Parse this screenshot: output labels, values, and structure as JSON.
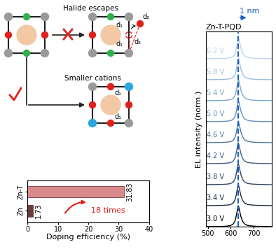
{
  "diagram": {
    "halide_label": "Halide escapes",
    "cation_label": "Smaller cations",
    "d1": "d₁",
    "d2": "d₂"
  },
  "chart_data": [
    {
      "type": "bar",
      "orientation": "horizontal",
      "categories": [
        "Zn-T",
        "Zn"
      ],
      "values": [
        31.83,
        1.73
      ],
      "colors": [
        "#d98a8c",
        "#6e3b3b"
      ],
      "xlabel": "Doping efficiency (%)",
      "xlim": [
        0,
        40
      ],
      "xticks": [
        0,
        10,
        20,
        30,
        40
      ],
      "data_labels": true,
      "annotation": "18 times"
    },
    {
      "type": "line",
      "title": "Zn-T-PQD",
      "ylabel": "EL intensity (norm.)",
      "x": [
        490,
        560,
        580,
        595,
        605,
        612,
        618,
        623,
        627,
        630,
        632,
        634,
        637,
        641,
        646,
        652,
        660,
        672,
        690,
        720,
        780
      ],
      "series": [
        {
          "name": "3.0 V",
          "color": "#000000",
          "values": [
            0.0,
            0.01,
            0.02,
            0.04,
            0.08,
            0.14,
            0.25,
            0.45,
            0.68,
            0.88,
            1.0,
            0.97,
            0.85,
            0.64,
            0.42,
            0.25,
            0.13,
            0.06,
            0.03,
            0.01,
            0.0
          ]
        },
        {
          "name": "3.4 V",
          "color": "#1c2b3a",
          "values": [
            0.0,
            0.01,
            0.02,
            0.04,
            0.08,
            0.14,
            0.25,
            0.45,
            0.68,
            0.88,
            1.0,
            0.97,
            0.85,
            0.64,
            0.42,
            0.25,
            0.13,
            0.06,
            0.03,
            0.01,
            0.0
          ]
        },
        {
          "name": "3.8 V",
          "color": "#2d4660",
          "values": [
            0.0,
            0.01,
            0.02,
            0.04,
            0.08,
            0.14,
            0.25,
            0.45,
            0.68,
            0.88,
            1.0,
            0.97,
            0.85,
            0.64,
            0.42,
            0.25,
            0.13,
            0.06,
            0.03,
            0.01,
            0.0
          ]
        },
        {
          "name": "4.2 V",
          "color": "#3d5f82",
          "values": [
            0.0,
            0.01,
            0.02,
            0.04,
            0.08,
            0.14,
            0.25,
            0.45,
            0.68,
            0.88,
            1.0,
            0.97,
            0.85,
            0.64,
            0.42,
            0.25,
            0.13,
            0.06,
            0.03,
            0.01,
            0.0
          ]
        },
        {
          "name": "4.6 V",
          "color": "#4d78a3",
          "values": [
            0.0,
            0.01,
            0.02,
            0.04,
            0.07,
            0.13,
            0.23,
            0.42,
            0.64,
            0.84,
            0.97,
            1.0,
            0.88,
            0.67,
            0.45,
            0.27,
            0.14,
            0.07,
            0.03,
            0.01,
            0.0
          ]
        },
        {
          "name": "5.0 V",
          "color": "#5f8fbf",
          "values": [
            0.0,
            0.01,
            0.02,
            0.04,
            0.07,
            0.13,
            0.23,
            0.42,
            0.64,
            0.84,
            0.97,
            1.0,
            0.88,
            0.67,
            0.45,
            0.27,
            0.14,
            0.07,
            0.03,
            0.01,
            0.0
          ]
        },
        {
          "name": "5.4 V",
          "color": "#7ba6d0",
          "values": [
            0.0,
            0.01,
            0.02,
            0.04,
            0.07,
            0.13,
            0.23,
            0.42,
            0.64,
            0.84,
            0.97,
            1.0,
            0.88,
            0.67,
            0.45,
            0.27,
            0.14,
            0.07,
            0.03,
            0.01,
            0.0
          ]
        },
        {
          "name": "5.8 V",
          "color": "#9bbcdf",
          "values": [
            0.0,
            0.01,
            0.02,
            0.04,
            0.07,
            0.13,
            0.23,
            0.42,
            0.64,
            0.84,
            0.97,
            1.0,
            0.88,
            0.67,
            0.45,
            0.27,
            0.14,
            0.07,
            0.03,
            0.01,
            0.0
          ]
        },
        {
          "name": "6.2 V",
          "color": "#bcd4ec",
          "values": [
            0.0,
            0.01,
            0.02,
            0.04,
            0.07,
            0.13,
            0.23,
            0.42,
            0.64,
            0.84,
            0.97,
            1.0,
            0.88,
            0.67,
            0.45,
            0.27,
            0.14,
            0.07,
            0.03,
            0.01,
            0.0
          ]
        }
      ],
      "xlim": [
        490,
        780
      ],
      "xticks": [
        500,
        600,
        700
      ],
      "ylim": [
        0,
        9.3
      ],
      "stacked": true,
      "tick_labels": "x",
      "vline": 632,
      "shift_label": "1 nm"
    }
  ]
}
